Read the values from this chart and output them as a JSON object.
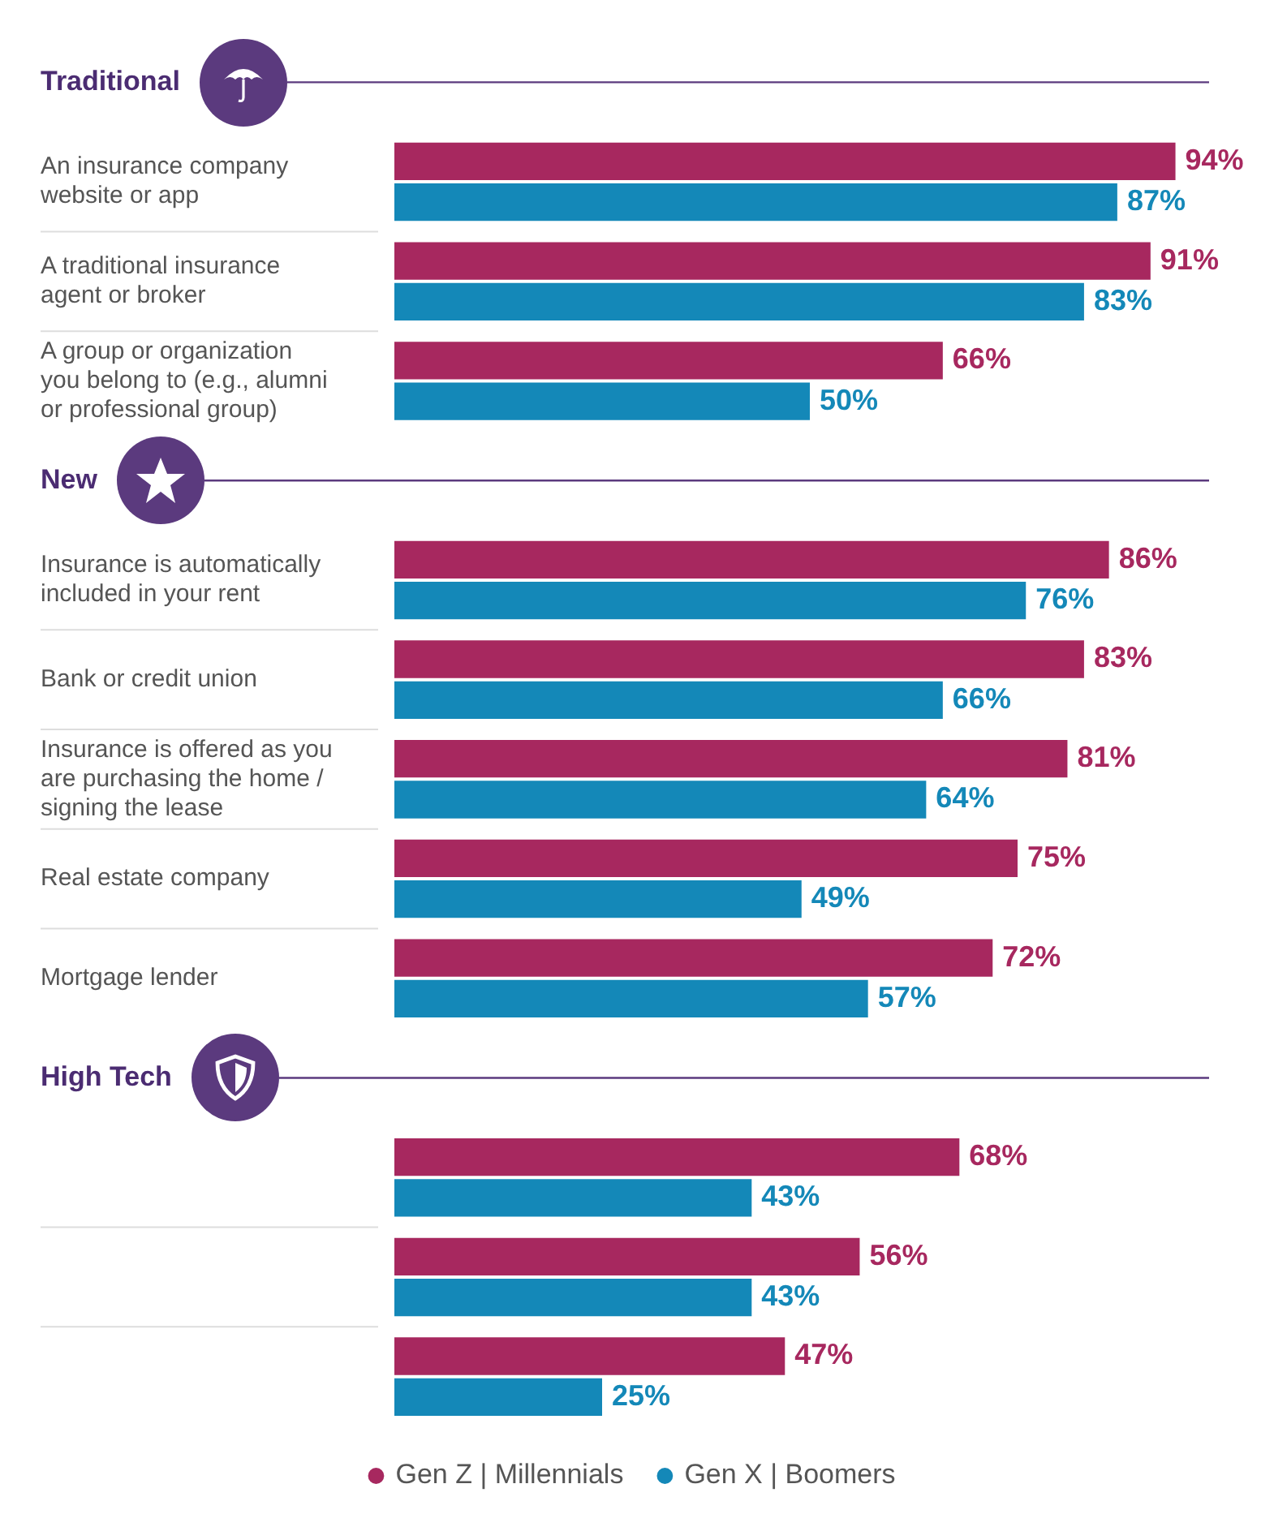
{
  "chart_data": {
    "type": "bar",
    "orientation": "horizontal",
    "categories": [
      "Traditional",
      "An insurance company website or app",
      "A traditional insurance agent or broker",
      "A group or organization you belong to (e.g., alumni or professional group)",
      "New",
      "Insurance is automatically included in your rent",
      "Bank or credit union",
      "Insurance is offered as you are purchasing the home / signing the lease",
      "Real estate company",
      "Mortgage lender",
      "High Tech",
      null,
      null,
      null
    ],
    "series": [
      {
        "name": "Gen Z | Millennials",
        "color": "#a7285f",
        "values": [
          null,
          94,
          91,
          66,
          null,
          86,
          83,
          81,
          75,
          72,
          null,
          68,
          56,
          47
        ],
        "value_labels": [
          null,
          "94%",
          "91%",
          "66%",
          null,
          "86%",
          "83%",
          "81%",
          "75%",
          "72%",
          null,
          "68%",
          "56%",
          "47%"
        ]
      },
      {
        "name": "Gen X | Boomers",
        "color": "#1488b8",
        "values": [
          null,
          87,
          83,
          50,
          null,
          76,
          66,
          64,
          49,
          57,
          null,
          43,
          43,
          25
        ],
        "value_labels": [
          null,
          "87%",
          "83%",
          "50%",
          null,
          "76%",
          "66%",
          "64%",
          "49%",
          "57%",
          null,
          "43%",
          "43%",
          "25%"
        ]
      }
    ],
    "legend": "bottom",
    "grid": "y"
  }
}
